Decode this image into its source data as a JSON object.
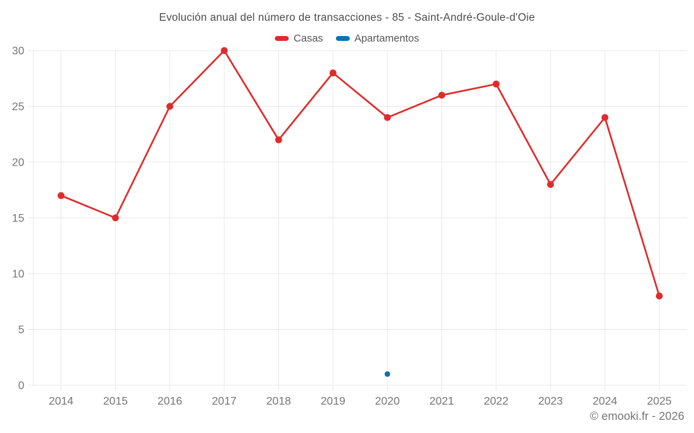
{
  "header": {
    "title": "Evolución anual del número de transacciones - 85 - Saint-André-Goule-d'Oie"
  },
  "legend": {
    "items": [
      {
        "label": "Casas",
        "color": "#df2b2b"
      },
      {
        "label": "Apartamentos",
        "color": "#0e73a8"
      }
    ]
  },
  "footer": {
    "credit": "© emooki.fr - 2026"
  },
  "colors": {
    "grid": "#e8e8e8",
    "axis_text": "#757575",
    "title_text": "#4c4c4c",
    "legend_text": "#565656",
    "background": "#ffffff"
  },
  "chart_data": {
    "type": "line",
    "title": "Evolución anual del número de transacciones - 85 - Saint-André-Goule-d'Oie",
    "categories": [
      "2014",
      "2015",
      "2016",
      "2017",
      "2018",
      "2019",
      "2020",
      "2021",
      "2022",
      "2023",
      "2024",
      "2025"
    ],
    "series": [
      {
        "name": "Casas",
        "color": "#df2b2b",
        "values": [
          17,
          15,
          25,
          30,
          22,
          28,
          24,
          26,
          27,
          18,
          24,
          8
        ]
      },
      {
        "name": "Apartamentos",
        "color": "#0e73a8",
        "values": [
          null,
          null,
          null,
          null,
          null,
          null,
          1,
          null,
          null,
          null,
          null,
          null
        ]
      }
    ],
    "xlabel": "",
    "ylabel": "",
    "ylim": [
      0,
      30
    ],
    "yticks": [
      0,
      5,
      10,
      15,
      20,
      25,
      30
    ],
    "grid": true,
    "legend_position": "top"
  }
}
